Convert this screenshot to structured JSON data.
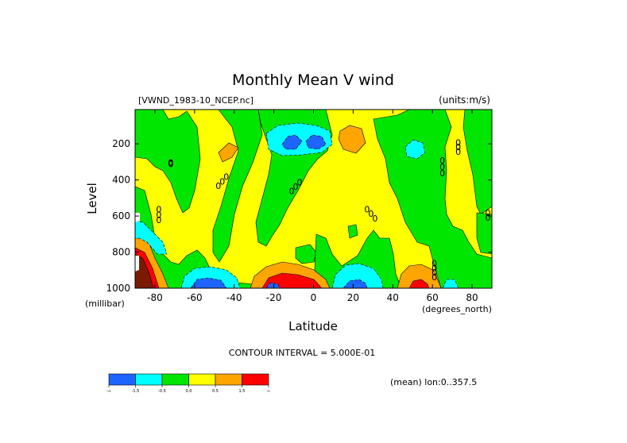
{
  "chart_data": {
    "type": "heatmap",
    "title": "Monthly Mean V wind",
    "dataset_label": "[VWND_1983-10_NCEP.nc]",
    "units_label": "(units:m/s)",
    "xlabel": "Latitude",
    "xunits": "(degrees_north)",
    "ylabel": "Level",
    "yunits": "(millibar)",
    "xlim": [
      -90,
      90
    ],
    "ylim": [
      1000,
      10
    ],
    "x_ticks": [
      -80,
      -60,
      -40,
      -20,
      0,
      20,
      40,
      60,
      80
    ],
    "y_ticks": [
      200,
      400,
      600,
      800,
      1000
    ],
    "contour_interval_label": "CONTOUR INTERVAL = 5.000E-01",
    "average_label": "(mean) lon:0..357.5",
    "colorbar": {
      "levels": [
        "-∞",
        "-1.5",
        "-0.5",
        "0.0",
        "0.5",
        "1.5",
        "∞"
      ],
      "colors": [
        "#1e64ff",
        "#00ffff",
        "#00e600",
        "#ffff00",
        "#ffa500",
        "#ff0000"
      ]
    },
    "zero_line_label": "0",
    "shading_colors": {
      "low": "#1e64ff",
      "mid_low": "#00ffff",
      "near_neg": "#00e600",
      "near_pos": "#ffff00",
      "mid_high": "#ffa500",
      "high": "#ff0000",
      "extreme_low": "#7a1a00"
    }
  }
}
